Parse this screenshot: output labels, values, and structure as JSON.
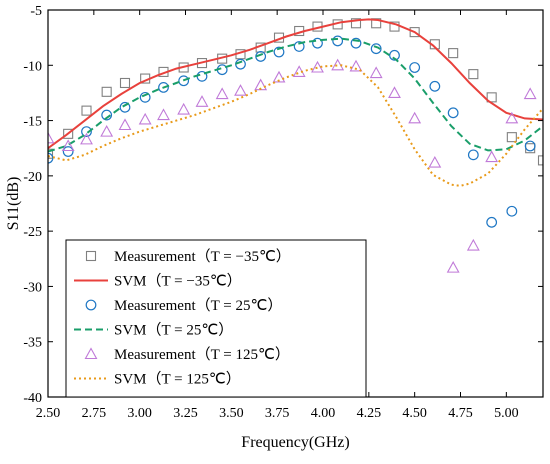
{
  "chart_data": {
    "type": "line",
    "xlabel": "Frequency(GHz)",
    "ylabel": "S11(dB)",
    "xlim": [
      2.5,
      5.2
    ],
    "ylim": [
      -40,
      -5
    ],
    "x_ticks": [
      "2.50",
      "2.75",
      "3.00",
      "3.25",
      "3.50",
      "3.75",
      "4.00",
      "4.25",
      "4.50",
      "4.75",
      "5.00"
    ],
    "x_tick_values": [
      2.5,
      2.75,
      3.0,
      3.25,
      3.5,
      3.75,
      4.0,
      4.25,
      4.5,
      4.75,
      5.0
    ],
    "y_ticks": [
      "-5",
      "-10",
      "-15",
      "-20",
      "-25",
      "-30",
      "-35",
      "-40"
    ],
    "y_tick_values": [
      -5,
      -10,
      -15,
      -20,
      -25,
      -30,
      -35,
      -40
    ],
    "grid": false,
    "legend_position": "bottom-left",
    "series": [
      {
        "name": "Measurement（T = −35℃）",
        "kind": "marker",
        "marker": "square",
        "color": "#808080",
        "x": [
          2.5,
          2.61,
          2.71,
          2.82,
          2.92,
          3.03,
          3.13,
          3.24,
          3.34,
          3.45,
          3.55,
          3.66,
          3.76,
          3.87,
          3.97,
          4.08,
          4.18,
          4.29,
          4.39,
          4.5,
          4.61,
          4.71,
          4.82,
          4.92,
          5.03,
          5.13,
          5.2
        ],
        "y": [
          -18.0,
          -16.2,
          -14.1,
          -12.4,
          -11.6,
          -11.2,
          -10.6,
          -10.2,
          -9.8,
          -9.4,
          -9.0,
          -8.4,
          -7.5,
          -6.9,
          -6.5,
          -6.3,
          -6.2,
          -6.2,
          -6.5,
          -7.0,
          -8.1,
          -8.9,
          -10.8,
          -12.9,
          -16.5,
          -17.5,
          -18.6
        ]
      },
      {
        "name": "SVM（T = −35℃）",
        "kind": "line",
        "dash": "solid",
        "color": "#e8413c",
        "x": [
          2.5,
          2.6,
          2.7,
          2.8,
          2.9,
          3.0,
          3.1,
          3.2,
          3.3,
          3.4,
          3.5,
          3.6,
          3.7,
          3.8,
          3.9,
          4.0,
          4.1,
          4.2,
          4.25,
          4.3,
          4.4,
          4.5,
          4.6,
          4.7,
          4.8,
          4.9,
          5.0,
          5.1,
          5.2
        ],
        "y": [
          -17.5,
          -16.3,
          -15.0,
          -13.7,
          -12.6,
          -11.6,
          -10.9,
          -10.3,
          -9.9,
          -9.5,
          -9.1,
          -8.6,
          -8.0,
          -7.4,
          -6.9,
          -6.5,
          -6.1,
          -5.9,
          -5.85,
          -5.9,
          -6.3,
          -7.0,
          -8.2,
          -9.8,
          -11.6,
          -13.2,
          -14.3,
          -14.8,
          -14.9
        ]
      },
      {
        "name": "Measurement（T = 25℃）",
        "kind": "marker",
        "marker": "circle",
        "color": "#1f77c4",
        "x": [
          2.5,
          2.61,
          2.71,
          2.82,
          2.92,
          3.03,
          3.13,
          3.24,
          3.34,
          3.45,
          3.55,
          3.66,
          3.76,
          3.87,
          3.97,
          4.08,
          4.18,
          4.29,
          4.39,
          4.5,
          4.61,
          4.71,
          4.82,
          4.92,
          5.03,
          5.13
        ],
        "y": [
          -18.4,
          -17.8,
          -16.0,
          -14.5,
          -13.8,
          -12.9,
          -12.0,
          -11.4,
          -11.0,
          -10.4,
          -9.9,
          -9.2,
          -8.8,
          -8.3,
          -8.0,
          -7.8,
          -8.0,
          -8.5,
          -9.1,
          -10.2,
          -11.9,
          -14.3,
          -18.1,
          -24.2,
          -23.2,
          -17.3
        ]
      },
      {
        "name": "SVM（T = 25℃）",
        "kind": "line",
        "dash": "dashed",
        "color": "#1a9e6a",
        "x": [
          2.5,
          2.6,
          2.7,
          2.8,
          2.9,
          3.0,
          3.1,
          3.2,
          3.3,
          3.4,
          3.5,
          3.6,
          3.7,
          3.8,
          3.9,
          4.0,
          4.1,
          4.2,
          4.3,
          4.4,
          4.5,
          4.6,
          4.7,
          4.8,
          4.9,
          5.0,
          5.1,
          5.2
        ],
        "y": [
          -17.8,
          -17.3,
          -16.3,
          -15.0,
          -13.8,
          -12.9,
          -12.2,
          -11.6,
          -11.0,
          -10.5,
          -10.0,
          -9.4,
          -8.8,
          -8.3,
          -7.9,
          -7.7,
          -7.6,
          -7.8,
          -8.4,
          -9.5,
          -11.2,
          -13.4,
          -15.5,
          -17.1,
          -17.7,
          -17.6,
          -16.8,
          -15.5
        ]
      },
      {
        "name": "Measurement（T = 125℃）",
        "kind": "marker",
        "marker": "triangle",
        "color": "#c07ad8",
        "x": [
          2.5,
          2.61,
          2.71,
          2.82,
          2.92,
          3.03,
          3.13,
          3.24,
          3.34,
          3.45,
          3.55,
          3.66,
          3.76,
          3.87,
          3.97,
          4.08,
          4.18,
          4.29,
          4.39,
          4.5,
          4.61,
          4.71,
          4.82,
          4.92,
          5.03,
          5.13
        ],
        "y": [
          -16.6,
          -17.3,
          -16.7,
          -16.0,
          -15.4,
          -14.9,
          -14.5,
          -14.0,
          -13.3,
          -12.6,
          -12.3,
          -11.8,
          -11.1,
          -10.6,
          -10.2,
          -10.0,
          -10.1,
          -10.7,
          -12.5,
          -14.8,
          -18.8,
          -28.3,
          -26.3,
          -18.3,
          -14.8,
          -12.6
        ]
      },
      {
        "name": "SVM（T = 125℃）",
        "kind": "line",
        "dash": "dotted",
        "color": "#e89a1a",
        "x": [
          2.5,
          2.6,
          2.7,
          2.8,
          2.9,
          3.0,
          3.1,
          3.2,
          3.3,
          3.4,
          3.5,
          3.6,
          3.7,
          3.8,
          3.9,
          4.0,
          4.1,
          4.2,
          4.3,
          4.4,
          4.5,
          4.6,
          4.7,
          4.75,
          4.8,
          4.9,
          5.0,
          5.1,
          5.2
        ],
        "y": [
          -18.2,
          -18.6,
          -18.1,
          -17.3,
          -16.6,
          -16.0,
          -15.5,
          -15.0,
          -14.5,
          -13.9,
          -13.3,
          -12.6,
          -11.8,
          -11.1,
          -10.5,
          -10.1,
          -10.0,
          -10.4,
          -12.0,
          -14.7,
          -17.6,
          -19.9,
          -20.8,
          -20.9,
          -20.7,
          -19.8,
          -18.0,
          -15.8,
          -13.9
        ]
      }
    ]
  }
}
